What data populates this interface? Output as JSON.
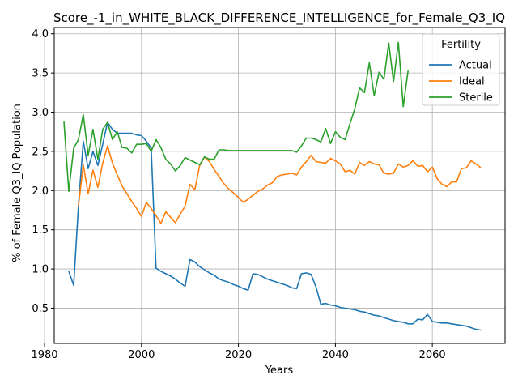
{
  "chart_data": {
    "type": "line",
    "title": "Score_-1_in_WHITE_BLACK_DIFFERENCE_INTELLIGENCE_for_Female_Q3_IQ",
    "xlabel": "Years",
    "ylabel": "% of Female Q3_IQ Population",
    "xlim": [
      1982,
      2075
    ],
    "ylim": [
      0.05,
      4.08
    ],
    "xticks": [
      1980,
      2000,
      2020,
      2040,
      2060
    ],
    "yticks": [
      0.5,
      1.0,
      1.5,
      2.0,
      2.5,
      3.0,
      3.5,
      4.0
    ],
    "ytick_labels": [
      "0.5",
      "1.0",
      "1.5",
      "2.0",
      "2.5",
      "3.0",
      "3.5",
      "4.0"
    ],
    "grid": true,
    "legend": {
      "title": "Fertility",
      "placement": "top-right"
    },
    "series": [
      {
        "name": "Actual",
        "color": "#1f77b4",
        "x": [
          1985,
          1986,
          1987,
          1988,
          1989,
          1990,
          1991,
          1992,
          1993,
          1994,
          1995,
          1996,
          1997,
          1998,
          1999,
          2000,
          2001,
          2002,
          2003,
          2004,
          2005,
          2006,
          2007,
          2008,
          2009,
          2010,
          2011,
          2012,
          2013,
          2014,
          2015,
          2016,
          2017,
          2018,
          2019,
          2020,
          2021,
          2022,
          2023,
          2024,
          2025,
          2026,
          2027,
          2028,
          2029,
          2030,
          2031,
          2032,
          2033,
          2034,
          2035,
          2036,
          2037,
          2038,
          2039,
          2040,
          2041,
          2042,
          2043,
          2044,
          2045,
          2046,
          2047,
          2048,
          2049,
          2050,
          2051,
          2052,
          2053,
          2054,
          2055,
          2056,
          2057,
          2058,
          2059,
          2060,
          2061,
          2062,
          2063,
          2064,
          2065,
          2066,
          2067,
          2068,
          2069,
          2070
        ],
        "y": [
          0.97,
          0.79,
          1.8,
          2.63,
          2.28,
          2.5,
          2.32,
          2.59,
          2.87,
          2.78,
          2.73,
          2.73,
          2.73,
          2.73,
          2.71,
          2.7,
          2.63,
          2.54,
          1.01,
          0.97,
          0.94,
          0.91,
          0.87,
          0.82,
          0.78,
          1.12,
          1.09,
          1.03,
          0.99,
          0.95,
          0.92,
          0.87,
          0.85,
          0.83,
          0.8,
          0.78,
          0.75,
          0.73,
          0.94,
          0.93,
          0.9,
          0.87,
          0.85,
          0.83,
          0.81,
          0.79,
          0.76,
          0.75,
          0.94,
          0.95,
          0.93,
          0.77,
          0.55,
          0.56,
          0.54,
          0.53,
          0.51,
          0.5,
          0.49,
          0.48,
          0.46,
          0.45,
          0.43,
          0.41,
          0.4,
          0.38,
          0.36,
          0.34,
          0.33,
          0.32,
          0.3,
          0.3,
          0.36,
          0.35,
          0.42,
          0.33,
          0.32,
          0.31,
          0.31,
          0.3,
          0.29,
          0.28,
          0.27,
          0.25,
          0.23,
          0.22
        ]
      },
      {
        "name": "Ideal",
        "color": "#ff7f0e",
        "x": [
          1987,
          1988,
          1989,
          1990,
          1991,
          1992,
          1993,
          1994,
          1995,
          1996,
          1997,
          1998,
          1999,
          2000,
          2001,
          2002,
          2003,
          2004,
          2005,
          2006,
          2007,
          2008,
          2009,
          2010,
          2011,
          2012,
          2013,
          2014,
          2015,
          2016,
          2017,
          2018,
          2019,
          2020,
          2021,
          2022,
          2023,
          2024,
          2025,
          2026,
          2027,
          2028,
          2029,
          2030,
          2031,
          2032,
          2033,
          2034,
          2035,
          2036,
          2037,
          2038,
          2039,
          2040,
          2041,
          2042,
          2043,
          2044,
          2045,
          2046,
          2047,
          2048,
          2049,
          2050,
          2051,
          2052,
          2053,
          2054,
          2055,
          2056,
          2057,
          2058,
          2059,
          2060,
          2061,
          2062,
          2063,
          2064,
          2065,
          2066,
          2067,
          2068,
          2069,
          2070
        ],
        "y": [
          1.8,
          2.33,
          1.96,
          2.26,
          2.04,
          2.35,
          2.57,
          2.35,
          2.2,
          2.06,
          1.96,
          1.86,
          1.77,
          1.67,
          1.85,
          1.77,
          1.68,
          1.58,
          1.73,
          1.66,
          1.59,
          1.7,
          1.8,
          2.08,
          2.01,
          2.32,
          2.43,
          2.37,
          2.27,
          2.18,
          2.09,
          2.02,
          1.97,
          1.91,
          1.85,
          1.89,
          1.94,
          1.99,
          2.02,
          2.07,
          2.1,
          2.18,
          2.2,
          2.21,
          2.22,
          2.2,
          2.3,
          2.37,
          2.45,
          2.37,
          2.36,
          2.35,
          2.41,
          2.38,
          2.34,
          2.24,
          2.26,
          2.21,
          2.36,
          2.32,
          2.37,
          2.34,
          2.33,
          2.22,
          2.21,
          2.22,
          2.34,
          2.3,
          2.32,
          2.38,
          2.31,
          2.32,
          2.24,
          2.3,
          2.15,
          2.08,
          2.05,
          2.11,
          2.11,
          2.28,
          2.29,
          2.38,
          2.34,
          2.29
        ]
      },
      {
        "name": "Sterile",
        "color": "#2ca02c",
        "x": [
          1984,
          1985,
          1986,
          1987,
          1988,
          1989,
          1990,
          1991,
          1992,
          1993,
          1994,
          1995,
          1996,
          1997,
          1998,
          1999,
          2000,
          2001,
          2002,
          2003,
          2004,
          2005,
          2006,
          2007,
          2008,
          2009,
          2010,
          2011,
          2012,
          2013,
          2014,
          2015,
          2016,
          2017,
          2018,
          2019,
          2020,
          2021,
          2022,
          2023,
          2024,
          2025,
          2026,
          2027,
          2028,
          2029,
          2030,
          2031,
          2032,
          2033,
          2034,
          2035,
          2036,
          2037,
          2038,
          2039,
          2040,
          2041,
          2042,
          2043,
          2044,
          2045,
          2046,
          2047,
          2048,
          2049,
          2050,
          2051,
          2052,
          2053,
          2054,
          2055
        ],
        "y": [
          2.88,
          1.99,
          2.54,
          2.65,
          2.97,
          2.45,
          2.78,
          2.4,
          2.78,
          2.87,
          2.65,
          2.75,
          2.55,
          2.54,
          2.48,
          2.59,
          2.59,
          2.6,
          2.5,
          2.65,
          2.55,
          2.4,
          2.34,
          2.25,
          2.32,
          2.42,
          2.39,
          2.36,
          2.33,
          2.43,
          2.4,
          2.4,
          2.52,
          2.52,
          2.51,
          2.51,
          2.51,
          2.51,
          2.51,
          2.51,
          2.51,
          2.51,
          2.51,
          2.51,
          2.51,
          2.51,
          2.51,
          2.51,
          2.49,
          2.57,
          2.67,
          2.67,
          2.65,
          2.62,
          2.79,
          2.6,
          2.75,
          2.68,
          2.65,
          2.85,
          3.04,
          3.31,
          3.25,
          3.63,
          3.21,
          3.51,
          3.42,
          3.88,
          3.39,
          3.89,
          3.07,
          3.53
        ]
      }
    ]
  }
}
